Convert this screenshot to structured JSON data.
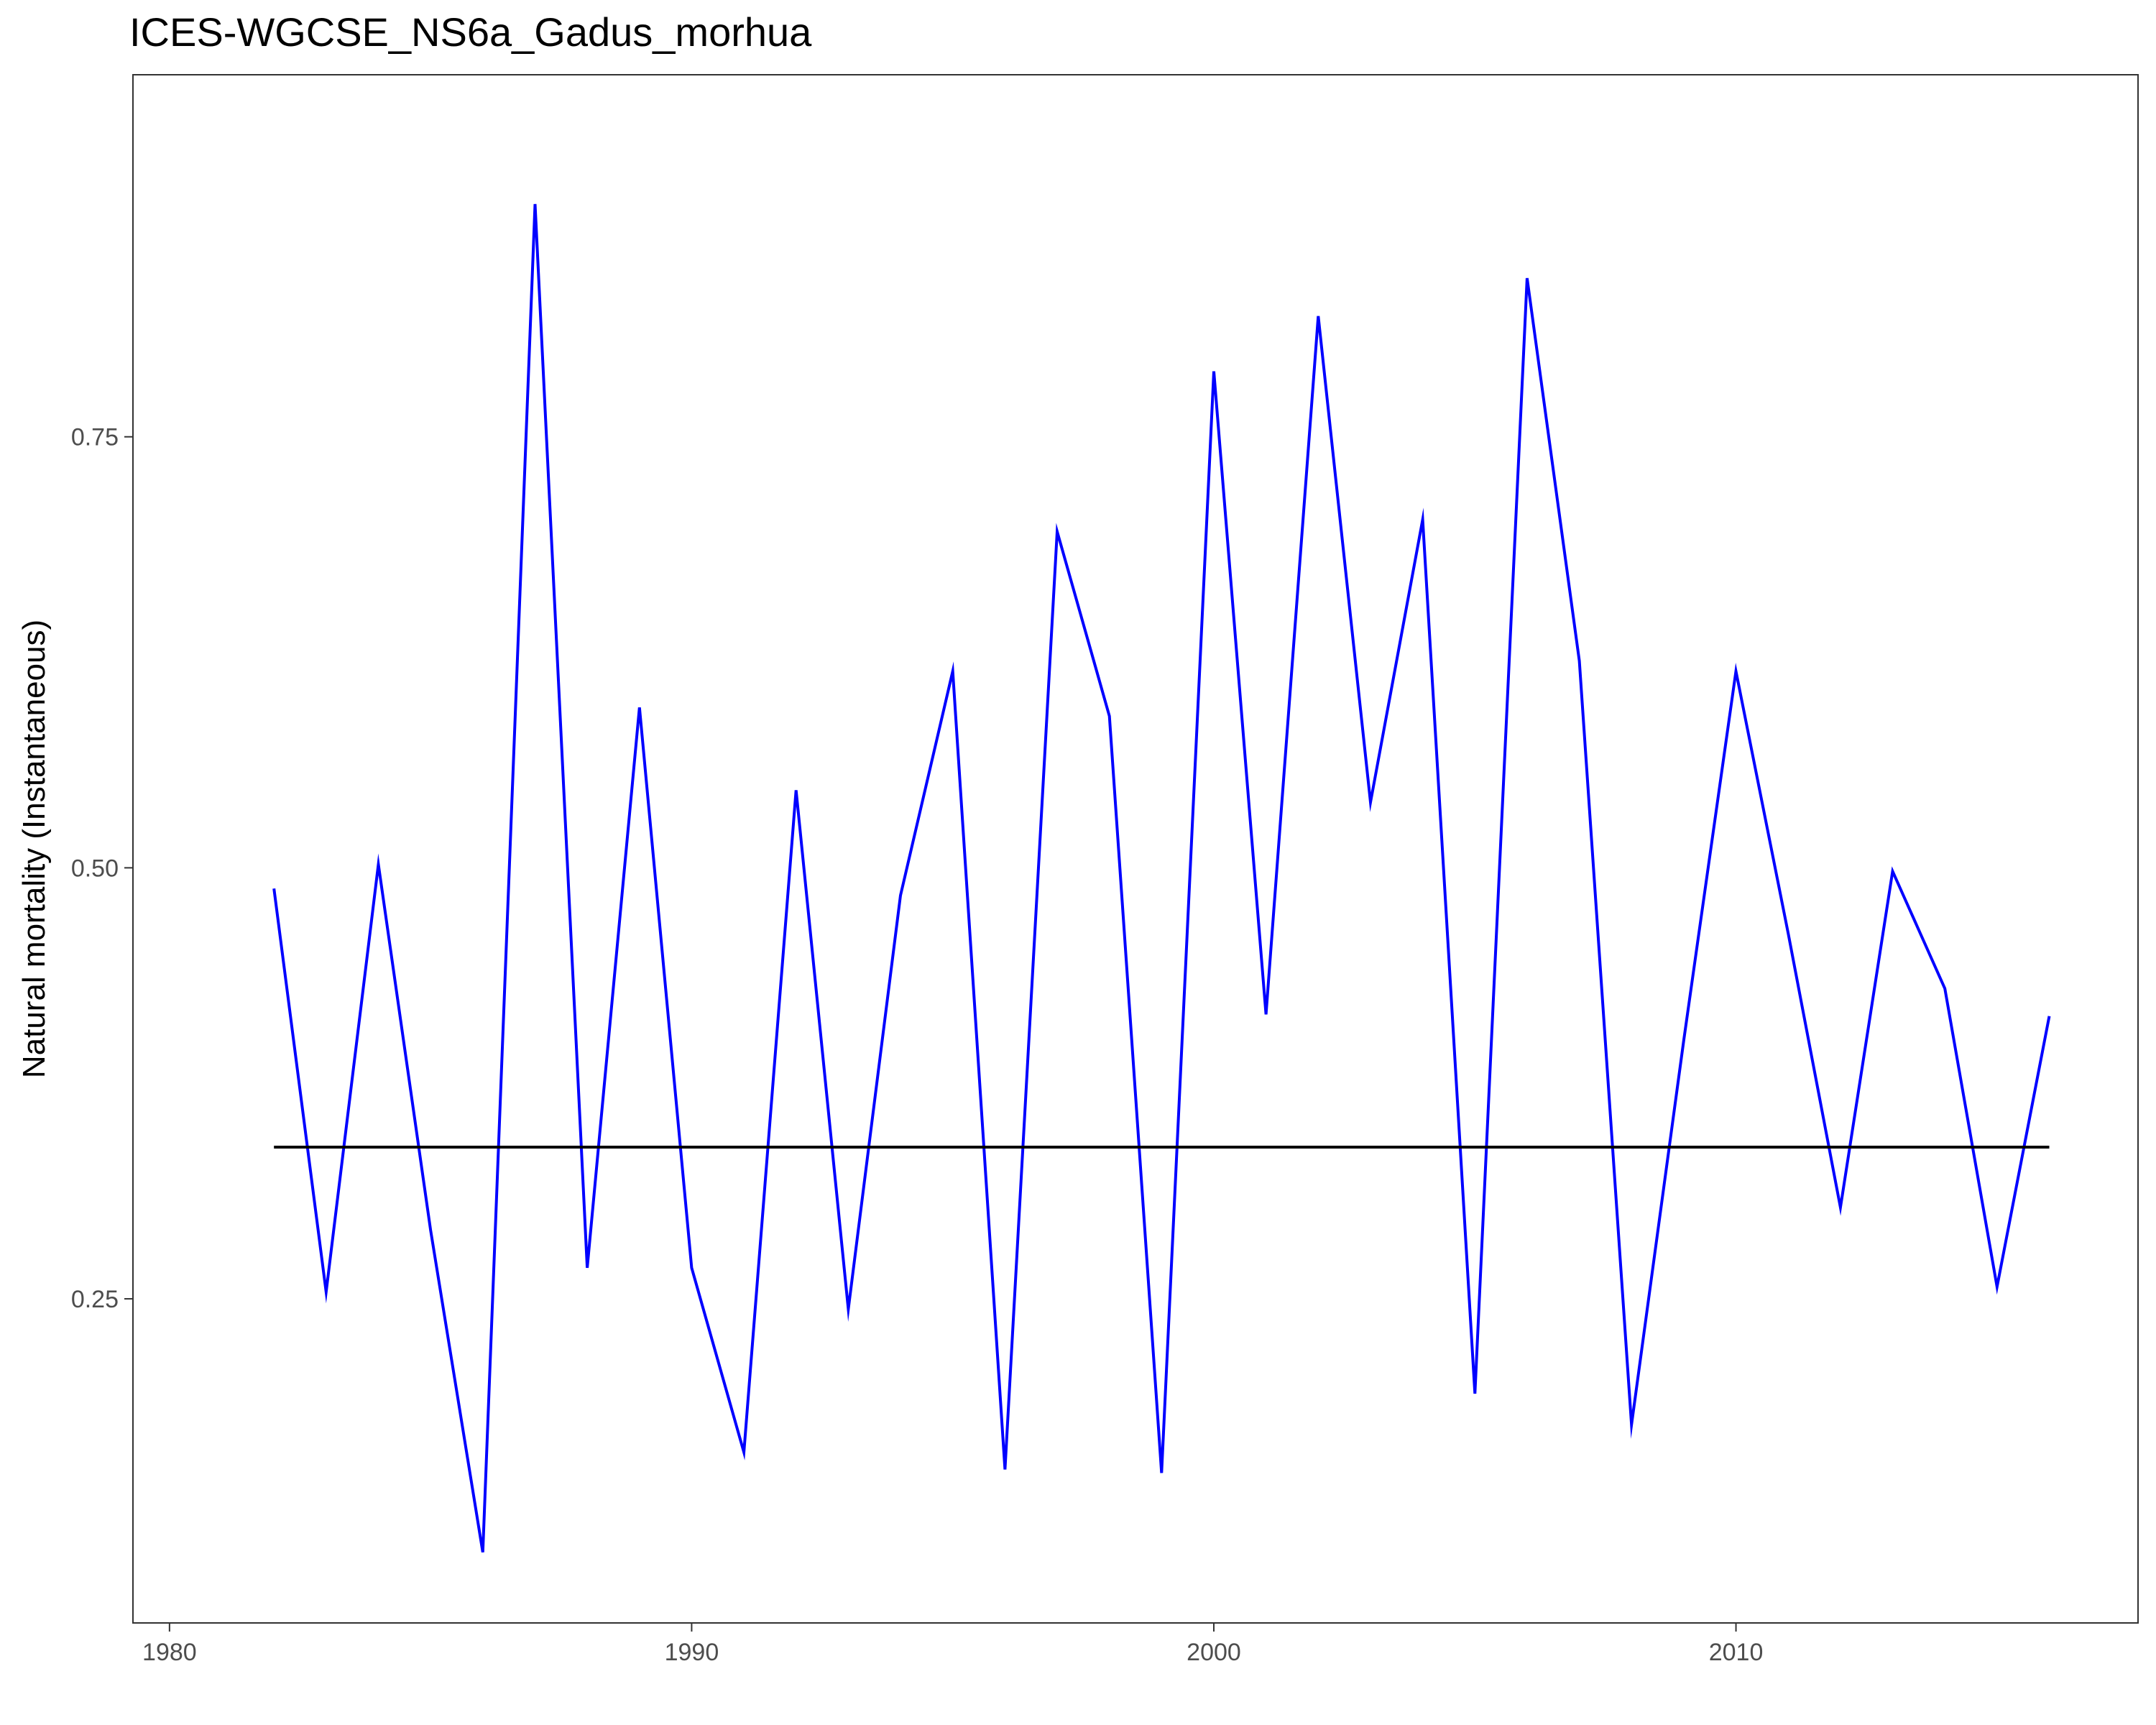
{
  "chart_data": {
    "type": "line",
    "title": "ICES-WGCSE_NS6a_Gadus_morhua",
    "xlabel": "",
    "ylabel": "Natural mortality (Instantaneous)",
    "xlim": [
      1979.3,
      2017.7
    ],
    "ylim": [
      0.062,
      0.96
    ],
    "x_ticks": [
      1980,
      1990,
      2000,
      2010
    ],
    "y_ticks": [
      0.25,
      0.5,
      0.75
    ],
    "x_tick_labels": [
      "1980",
      "1990",
      "2000",
      "2010"
    ],
    "y_tick_labels": [
      "0.25",
      "0.50",
      "0.75"
    ],
    "grid": false,
    "series": [
      {
        "color": "#0000ff",
        "x": [
          1982,
          1983,
          1984,
          1985,
          1986,
          1987,
          1988,
          1989,
          1990,
          1991,
          1992,
          1993,
          1994,
          1995,
          1996,
          1997,
          1998,
          1999,
          2000,
          2001,
          2002,
          2003,
          2004,
          2005,
          2006,
          2007,
          2008,
          2009,
          2010,
          2011,
          2012,
          2013,
          2014,
          2015,
          2016
        ],
        "values": [
          0.488,
          0.254,
          0.502,
          0.29,
          0.103,
          0.885,
          0.268,
          0.593,
          0.268,
          0.161,
          0.545,
          0.244,
          0.484,
          0.614,
          0.151,
          0.695,
          0.588,
          0.149,
          0.788,
          0.415,
          0.82,
          0.538,
          0.702,
          0.195,
          0.842,
          0.62,
          0.177,
          0.4,
          0.614,
          0.462,
          0.303,
          0.498,
          0.43,
          0.257,
          0.414
        ]
      },
      {
        "color": "#000000",
        "x": [
          1982,
          2016
        ],
        "values": [
          0.338,
          0.338
        ]
      }
    ]
  }
}
